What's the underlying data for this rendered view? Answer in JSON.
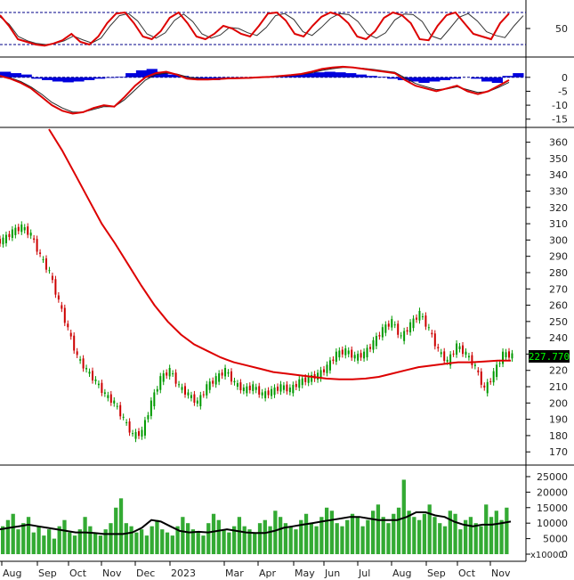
{
  "chart_data": [
    {
      "type": "line",
      "panel": "oscillator",
      "yticks": [
        50
      ],
      "guide_levels": [
        80,
        20
      ],
      "series": [
        {
          "color": "#dd0000",
          "values": [
            75,
            55,
            30,
            25,
            20,
            18,
            22,
            28,
            40,
            25,
            20,
            35,
            60,
            78,
            80,
            60,
            35,
            30,
            45,
            70,
            80,
            60,
            35,
            30,
            40,
            55,
            50,
            40,
            35,
            55,
            78,
            80,
            65,
            40,
            35,
            55,
            72,
            80,
            75,
            60,
            35,
            30,
            45,
            70,
            80,
            75,
            60,
            30,
            28,
            55,
            75,
            80,
            60,
            40,
            35,
            30,
            60,
            78
          ]
        },
        {
          "color": "#333333",
          "values": [
            72,
            58,
            35,
            27,
            22,
            20,
            22,
            27,
            36,
            29,
            23,
            32,
            55,
            74,
            78,
            64,
            40,
            32,
            42,
            65,
            77,
            63,
            40,
            32,
            38,
            52,
            50,
            42,
            37,
            52,
            74,
            78,
            67,
            44,
            37,
            52,
            69,
            78,
            76,
            63,
            40,
            32,
            42,
            66,
            77,
            76,
            63,
            36,
            30,
            50,
            71,
            78,
            64,
            44,
            37,
            33,
            55,
            74
          ]
        }
      ],
      "guide_color": "#000088"
    },
    {
      "type": "bar",
      "panel": "macd",
      "yticks": [
        0,
        -5,
        -10,
        -15
      ],
      "histogram_color": "#0000dd",
      "series": [
        {
          "color": "#dd0000",
          "values": [
            0.5,
            -0.5,
            -2,
            -4,
            -7,
            -10,
            -12,
            -13,
            -12.5,
            -11,
            -10,
            -10.5,
            -7,
            -3,
            0,
            1.5,
            2,
            1,
            -0.5,
            -0.8,
            -0.8,
            -0.6,
            -0.4,
            -0.3,
            -0.2,
            0,
            0.2,
            0.5,
            0.8,
            1.2,
            2,
            3,
            3.5,
            3.8,
            3.5,
            3,
            2.5,
            2,
            1.5,
            -1,
            -3,
            -4,
            -5,
            -4,
            -3,
            -5,
            -6,
            -5,
            -3,
            -1
          ]
        },
        {
          "color": "#222222",
          "values": [
            0.3,
            -0.2,
            -1.5,
            -3.5,
            -6,
            -9,
            -11,
            -12.5,
            -12.5,
            -11.5,
            -10.5,
            -10.5,
            -8,
            -4.5,
            -1,
            1,
            1.5,
            1.2,
            0.2,
            -0.4,
            -0.6,
            -0.6,
            -0.5,
            -0.4,
            -0.3,
            -0.1,
            0.1,
            0.3,
            0.6,
            1,
            1.6,
            2.5,
            3.1,
            3.5,
            3.5,
            3.2,
            2.8,
            2.3,
            1.8,
            -0.2,
            -2.2,
            -3.4,
            -4.4,
            -4.2,
            -3.4,
            -4.4,
            -5.4,
            -5.1,
            -3.6,
            -1.8
          ]
        },
        {
          "color": "#0000dd",
          "values": [
            2,
            1.5,
            1,
            -0.5,
            -1,
            -1.5,
            -1.8,
            -1.5,
            -1,
            -0.5,
            -0.2,
            0.2,
            1.5,
            2.5,
            3,
            2,
            1,
            0.5,
            -0.5,
            -1,
            -1,
            -0.5,
            -0.3,
            -0.2,
            0,
            0.3,
            0.5,
            0.8,
            1,
            1.5,
            1.8,
            2,
            1.8,
            1.5,
            1,
            0.5,
            0.2,
            -0.5,
            -1,
            -1.5,
            -2,
            -1.5,
            -1,
            -0.5,
            0,
            -0.5,
            -1.5,
            -2,
            0.5,
            1.5
          ]
        }
      ]
    },
    {
      "type": "line",
      "panel": "price",
      "ylim": [
        163,
        368
      ],
      "yticks": [
        360,
        350,
        340,
        330,
        320,
        310,
        300,
        290,
        280,
        270,
        260,
        250,
        240,
        230,
        220,
        210,
        200,
        190,
        180,
        170
      ],
      "last_price_label": "227.770",
      "up_color": "#009900",
      "down_color": "#cc0000",
      "series": [
        {
          "color": "#555555",
          "values": [
            300,
            305,
            308,
            303,
            290,
            280,
            262,
            245,
            228,
            220,
            213,
            205,
            200,
            190,
            180,
            182,
            200,
            215,
            220,
            210,
            205,
            200,
            210,
            215,
            220,
            212,
            208,
            210,
            205,
            207,
            210,
            208,
            213,
            215,
            217,
            222,
            230,
            232,
            228,
            230,
            237,
            245,
            250,
            240,
            248,
            255,
            245,
            232,
            225,
            235,
            230,
            222,
            208,
            218,
            230,
            229
          ]
        },
        {
          "color": "#dd0000",
          "values": [
            368,
            355,
            340,
            325,
            310,
            298,
            285,
            272,
            260,
            250,
            242,
            236,
            232,
            228,
            225,
            223,
            221,
            219,
            218,
            217,
            216,
            215,
            214.5,
            214.5,
            215,
            216,
            218,
            220,
            222,
            223,
            224,
            225,
            225,
            225.5,
            226,
            226
          ]
        }
      ]
    },
    {
      "type": "bar",
      "panel": "volume",
      "yticks": [
        25000,
        20000,
        15000,
        10000,
        5000,
        0
      ],
      "unit_label": "x10000",
      "bar_color": "#33aa33",
      "series": [
        {
          "color": "#33aa33",
          "values": [
            9000,
            11000,
            13000,
            8000,
            10000,
            12000,
            7000,
            9000,
            6000,
            8000,
            5000,
            9000,
            11000,
            7000,
            6000,
            8000,
            12000,
            9000,
            7000,
            6000,
            8000,
            10000,
            15000,
            18000,
            10000,
            9000,
            7000,
            8000,
            6000,
            9000,
            11000,
            8000,
            7000,
            6000,
            9000,
            12000,
            10000,
            8000,
            7000,
            6000,
            10000,
            13000,
            11000,
            8000,
            7000,
            9000,
            12000,
            9000,
            8000,
            7000,
            10000,
            11000,
            9000,
            14000,
            12000,
            10000,
            9000,
            8000,
            11000,
            13000,
            10000,
            9000,
            12000,
            15000,
            14000,
            10000,
            9000,
            11000,
            13000,
            12000,
            9000,
            11000,
            14000,
            16000,
            12000,
            10000,
            13000,
            15000,
            24000,
            14000,
            12000,
            11000,
            13000,
            16000,
            12000,
            10000,
            9000,
            14000,
            13000,
            8000,
            11000,
            12000,
            10000,
            9000,
            16000,
            12000,
            14000,
            11000,
            15000
          ]
        },
        {
          "color": "#000000",
          "values": [
            8000,
            8500,
            9000,
            9500,
            9000,
            8500,
            8000,
            7500,
            7000,
            7000,
            6800,
            6500,
            6500,
            6500,
            7000,
            8500,
            11000,
            10500,
            9000,
            7500,
            7000,
            7200,
            7000,
            7500,
            8000,
            7500,
            7000,
            6800,
            6800,
            7500,
            8500,
            9000,
            9500,
            10000,
            10500,
            11000,
            11500,
            12000,
            12000,
            11500,
            11000,
            11000,
            11000,
            12000,
            13500,
            13500,
            12500,
            12000,
            10500,
            9500,
            9000,
            9500,
            9500,
            10000,
            10500
          ]
        }
      ]
    }
  ],
  "x_axis": {
    "months": [
      "Aug",
      "Sep",
      "Oct",
      "Nov",
      "Dec",
      "2023",
      "Mar",
      "Apr",
      "May",
      "Jun",
      "Jul",
      "Aug",
      "Sep",
      "Oct",
      "Nov"
    ]
  }
}
